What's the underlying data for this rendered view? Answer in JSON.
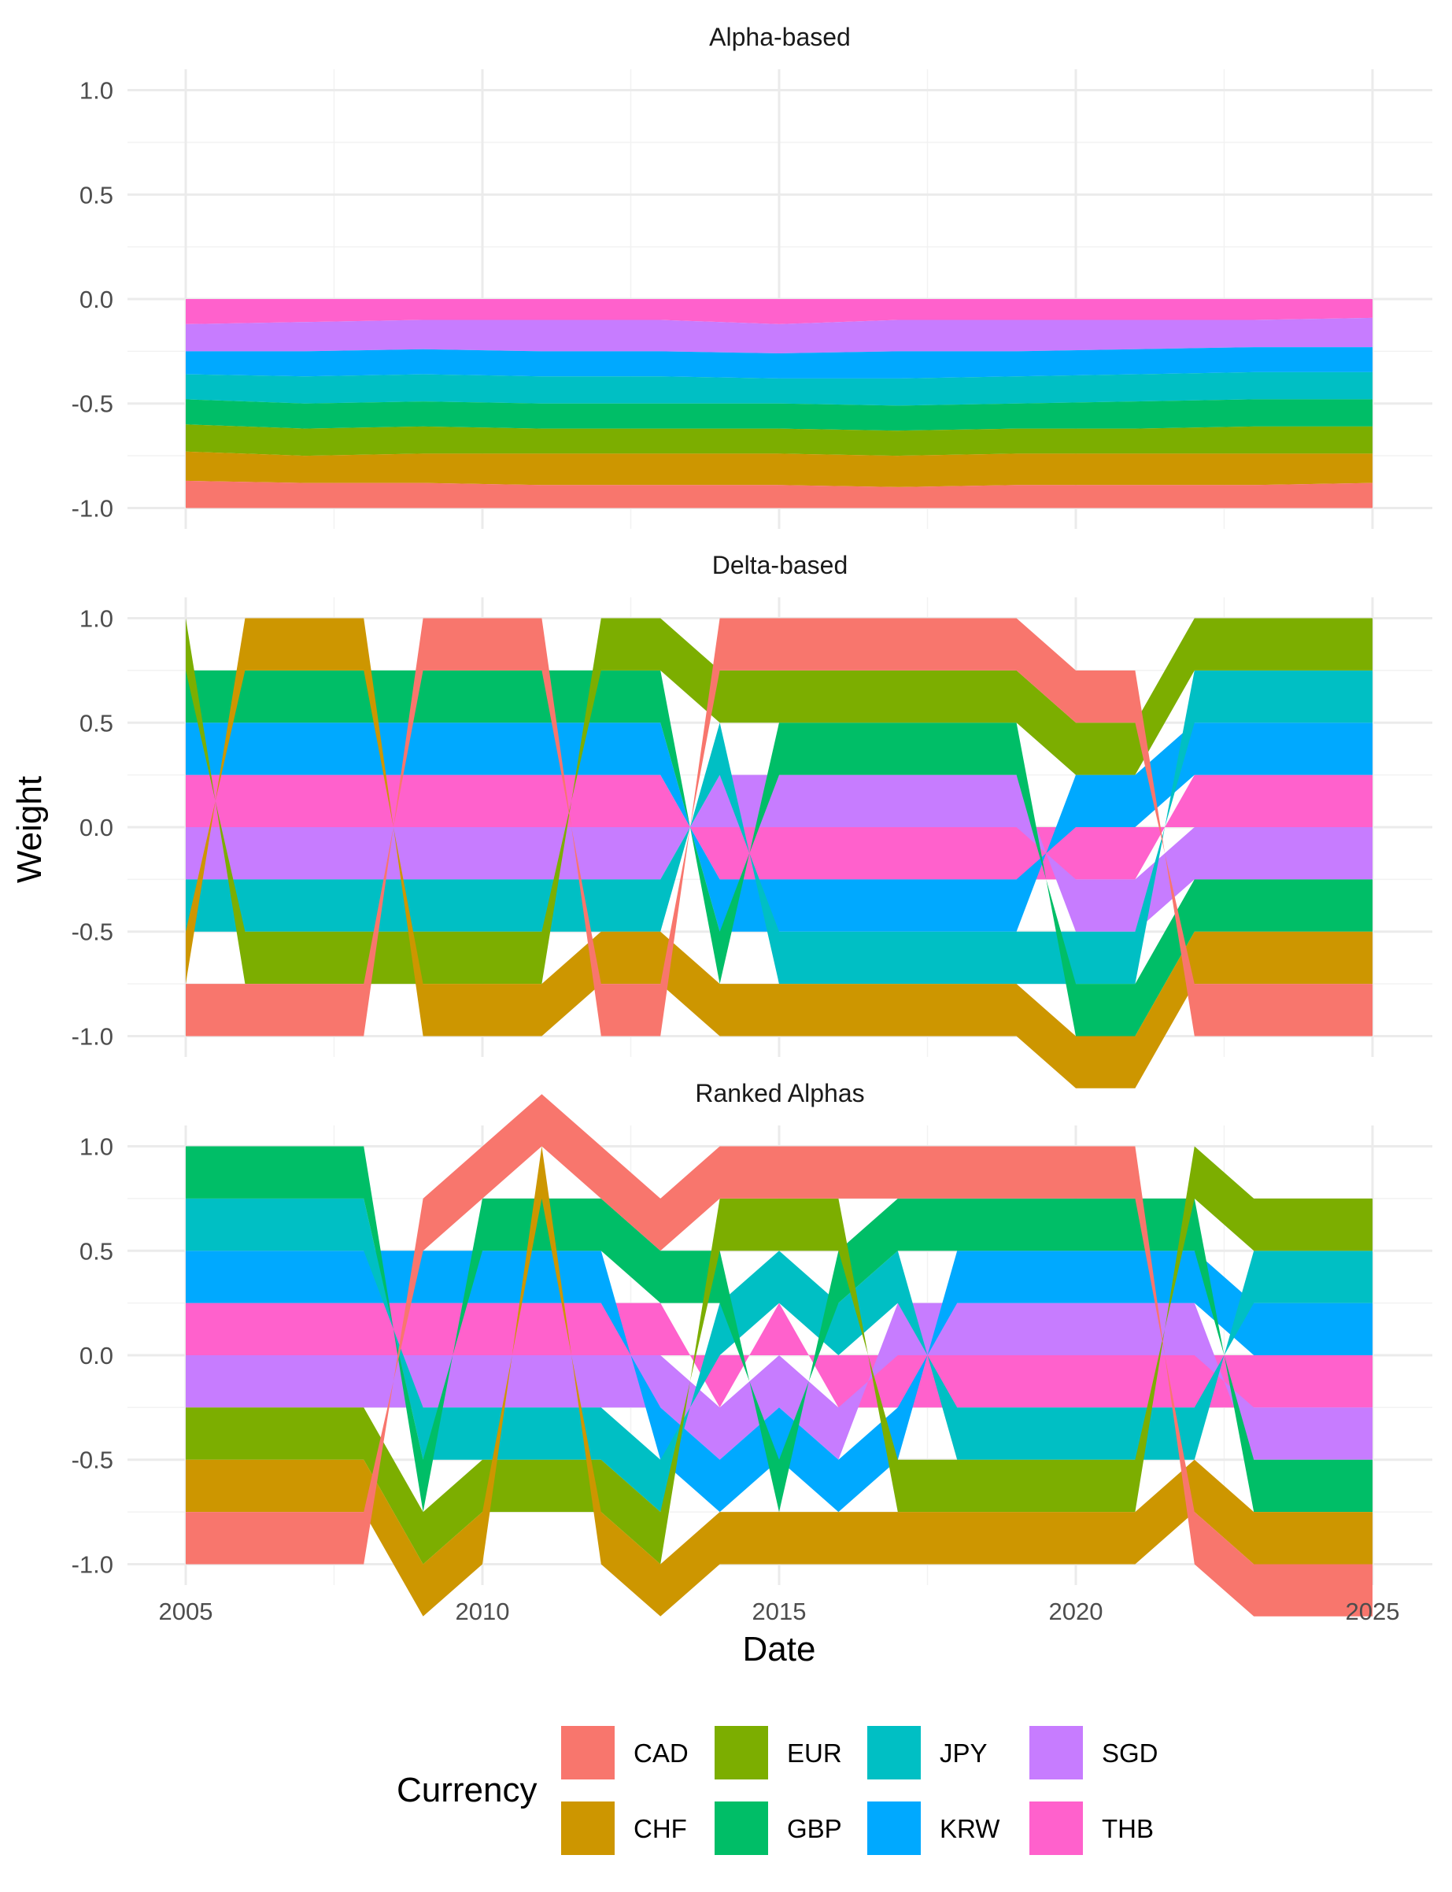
{
  "chart_data": {
    "type": "area",
    "xlabel": "Date",
    "ylabel": "Weight",
    "x_ticks": [
      "2005",
      "2010",
      "2015",
      "2020",
      "2025"
    ],
    "x_range": [
      "2005-01",
      "2025-01"
    ],
    "y_ticks": [
      "-1.0",
      "-0.5",
      "0.0",
      "0.5",
      "1.0"
    ],
    "ylim": [
      -1.0,
      1.0
    ],
    "grid": true,
    "legend": {
      "title": "Currency",
      "position": "bottom",
      "entries": [
        {
          "name": "CAD",
          "color": "#F8766D"
        },
        {
          "name": "CHF",
          "color": "#CD9600"
        },
        {
          "name": "EUR",
          "color": "#7CAE00"
        },
        {
          "name": "GBP",
          "color": "#00BE67"
        },
        {
          "name": "JPY",
          "color": "#00BFC4"
        },
        {
          "name": "KRW",
          "color": "#00A9FF"
        },
        {
          "name": "SGD",
          "color": "#C77CFF"
        },
        {
          "name": "THB",
          "color": "#FF61CC"
        }
      ]
    },
    "panels": [
      {
        "title": "Alpha-based",
        "note": "all weights negative; stacked from 0 down to -1",
        "x": [
          "2005",
          "2007",
          "2009",
          "2011",
          "2013",
          "2015",
          "2017",
          "2019",
          "2021",
          "2023",
          "2025"
        ],
        "series": [
          {
            "name": "CAD",
            "values": [
              -0.13,
              -0.12,
              -0.12,
              -0.11,
              -0.11,
              -0.11,
              -0.1,
              -0.11,
              -0.11,
              -0.11,
              -0.12
            ]
          },
          {
            "name": "CHF",
            "values": [
              -0.14,
              -0.13,
              -0.14,
              -0.15,
              -0.15,
              -0.15,
              -0.15,
              -0.15,
              -0.15,
              -0.15,
              -0.14
            ]
          },
          {
            "name": "EUR",
            "values": [
              -0.13,
              -0.13,
              -0.13,
              -0.12,
              -0.12,
              -0.12,
              -0.12,
              -0.12,
              -0.12,
              -0.13,
              -0.13
            ]
          },
          {
            "name": "GBP",
            "values": [
              -0.12,
              -0.12,
              -0.12,
              -0.12,
              -0.12,
              -0.12,
              -0.12,
              -0.12,
              -0.13,
              -0.13,
              -0.13
            ]
          },
          {
            "name": "JPY",
            "values": [
              -0.12,
              -0.13,
              -0.13,
              -0.13,
              -0.13,
              -0.12,
              -0.13,
              -0.13,
              -0.13,
              -0.13,
              -0.13
            ]
          },
          {
            "name": "KRW",
            "values": [
              -0.11,
              -0.12,
              -0.12,
              -0.12,
              -0.12,
              -0.12,
              -0.13,
              -0.12,
              -0.12,
              -0.12,
              -0.12
            ]
          },
          {
            "name": "SGD",
            "values": [
              -0.13,
              -0.14,
              -0.14,
              -0.15,
              -0.15,
              -0.14,
              -0.15,
              -0.15,
              -0.14,
              -0.13,
              -0.14
            ]
          },
          {
            "name": "THB",
            "values": [
              -0.12,
              -0.11,
              -0.1,
              -0.1,
              -0.1,
              -0.12,
              -0.1,
              -0.1,
              -0.1,
              -0.1,
              -0.09
            ]
          }
        ]
      },
      {
        "title": "Delta-based",
        "note": "long-short: each currency held at +0.25 or -0.25",
        "x": [
          "2005",
          "2006",
          "2007",
          "2008",
          "2009",
          "2010",
          "2011",
          "2012",
          "2013",
          "2014",
          "2015",
          "2016",
          "2017",
          "2018",
          "2019",
          "2020",
          "2021",
          "2022",
          "2023",
          "2024",
          "2025"
        ],
        "series": [
          {
            "name": "CAD",
            "values": [
              -0.25,
              -0.25,
              -0.25,
              -0.25,
              0.25,
              0.25,
              0.25,
              -0.25,
              -0.25,
              0.25,
              0.25,
              0.25,
              0.25,
              0.25,
              0.25,
              0.25,
              0.25,
              -0.25,
              -0.25,
              -0.25,
              -0.25
            ]
          },
          {
            "name": "CHF",
            "values": [
              -0.25,
              0.25,
              0.25,
              0.25,
              -0.25,
              -0.25,
              -0.25,
              -0.25,
              -0.25,
              -0.25,
              -0.25,
              -0.25,
              -0.25,
              -0.25,
              -0.25,
              -0.25,
              -0.25,
              -0.25,
              -0.25,
              -0.25,
              -0.25
            ]
          },
          {
            "name": "EUR",
            "values": [
              0.25,
              -0.25,
              -0.25,
              -0.25,
              -0.25,
              -0.25,
              -0.25,
              0.25,
              0.25,
              0.25,
              0.25,
              0.25,
              0.25,
              0.25,
              0.25,
              0.25,
              0.25,
              0.25,
              0.25,
              0.25,
              0.25
            ]
          },
          {
            "name": "GBP",
            "values": [
              0.25,
              0.25,
              0.25,
              0.25,
              0.25,
              0.25,
              0.25,
              0.25,
              0.25,
              -0.25,
              0.25,
              0.25,
              0.25,
              0.25,
              0.25,
              -0.25,
              -0.25,
              -0.25,
              -0.25,
              -0.25,
              -0.25
            ]
          },
          {
            "name": "JPY",
            "values": [
              -0.25,
              -0.25,
              -0.25,
              -0.25,
              -0.25,
              -0.25,
              -0.25,
              -0.25,
              -0.25,
              0.25,
              -0.25,
              -0.25,
              -0.25,
              -0.25,
              -0.25,
              -0.25,
              -0.25,
              0.25,
              0.25,
              0.25,
              0.25
            ]
          },
          {
            "name": "KRW",
            "values": [
              0.25,
              0.25,
              0.25,
              0.25,
              0.25,
              0.25,
              0.25,
              0.25,
              0.25,
              -0.25,
              -0.25,
              -0.25,
              -0.25,
              -0.25,
              -0.25,
              0.25,
              0.25,
              0.25,
              0.25,
              0.25,
              0.25
            ]
          },
          {
            "name": "SGD",
            "values": [
              -0.25,
              -0.25,
              -0.25,
              -0.25,
              -0.25,
              -0.25,
              -0.25,
              -0.25,
              -0.25,
              0.25,
              0.25,
              0.25,
              0.25,
              0.25,
              0.25,
              -0.25,
              -0.25,
              -0.25,
              -0.25,
              -0.25,
              -0.25
            ]
          },
          {
            "name": "THB",
            "values": [
              0.25,
              0.25,
              0.25,
              0.25,
              0.25,
              0.25,
              0.25,
              0.25,
              0.25,
              -0.25,
              -0.25,
              -0.25,
              -0.25,
              -0.25,
              -0.25,
              -0.25,
              -0.25,
              0.25,
              0.25,
              0.25,
              0.25
            ]
          }
        ]
      },
      {
        "title": "Ranked Alphas",
        "note": "long-short: each currency held at +0.25 or -0.25",
        "x": [
          "2005",
          "2006",
          "2007",
          "2008",
          "2009",
          "2010",
          "2011",
          "2012",
          "2013",
          "2014",
          "2015",
          "2016",
          "2017",
          "2018",
          "2019",
          "2020",
          "2021",
          "2022",
          "2023",
          "2024",
          "2025"
        ],
        "series": [
          {
            "name": "CAD",
            "values": [
              -0.25,
              -0.25,
              -0.25,
              -0.25,
              0.25,
              0.25,
              0.25,
              0.25,
              0.25,
              0.25,
              0.25,
              0.25,
              0.25,
              0.25,
              0.25,
              0.25,
              0.25,
              -0.25,
              -0.25,
              -0.25,
              -0.25
            ]
          },
          {
            "name": "CHF",
            "values": [
              -0.25,
              -0.25,
              -0.25,
              -0.25,
              -0.25,
              -0.25,
              0.25,
              -0.25,
              -0.25,
              -0.25,
              -0.25,
              -0.25,
              -0.25,
              -0.25,
              -0.25,
              -0.25,
              -0.25,
              -0.25,
              -0.25,
              -0.25,
              -0.25
            ]
          },
          {
            "name": "EUR",
            "values": [
              -0.25,
              -0.25,
              -0.25,
              -0.25,
              -0.25,
              -0.25,
              -0.25,
              -0.25,
              -0.25,
              0.25,
              0.25,
              0.25,
              -0.25,
              -0.25,
              -0.25,
              -0.25,
              -0.25,
              0.25,
              0.25,
              0.25,
              0.25
            ]
          },
          {
            "name": "GBP",
            "values": [
              0.25,
              0.25,
              0.25,
              0.25,
              -0.25,
              0.25,
              0.25,
              0.25,
              0.25,
              0.25,
              -0.25,
              0.25,
              0.25,
              0.25,
              0.25,
              0.25,
              0.25,
              0.25,
              -0.25,
              -0.25,
              -0.25
            ]
          },
          {
            "name": "JPY",
            "values": [
              0.25,
              0.25,
              0.25,
              0.25,
              -0.25,
              -0.25,
              -0.25,
              -0.25,
              -0.25,
              0.25,
              0.25,
              0.25,
              0.25,
              -0.25,
              -0.25,
              -0.25,
              -0.25,
              -0.25,
              0.25,
              0.25,
              0.25
            ]
          },
          {
            "name": "KRW",
            "values": [
              0.25,
              0.25,
              0.25,
              0.25,
              0.25,
              0.25,
              0.25,
              0.25,
              -0.25,
              -0.25,
              -0.25,
              -0.25,
              -0.25,
              0.25,
              0.25,
              0.25,
              0.25,
              0.25,
              0.25,
              0.25,
              0.25
            ]
          },
          {
            "name": "SGD",
            "values": [
              -0.25,
              -0.25,
              -0.25,
              -0.25,
              -0.25,
              -0.25,
              -0.25,
              -0.25,
              -0.25,
              -0.25,
              -0.25,
              -0.25,
              0.25,
              0.25,
              0.25,
              0.25,
              0.25,
              0.25,
              -0.25,
              -0.25,
              -0.25
            ]
          },
          {
            "name": "THB",
            "values": [
              0.25,
              0.25,
              0.25,
              0.25,
              0.25,
              0.25,
              0.25,
              0.25,
              0.25,
              -0.25,
              0.25,
              -0.25,
              -0.25,
              -0.25,
              -0.25,
              -0.25,
              -0.25,
              -0.25,
              -0.25,
              -0.25,
              -0.25
            ]
          }
        ]
      }
    ]
  }
}
